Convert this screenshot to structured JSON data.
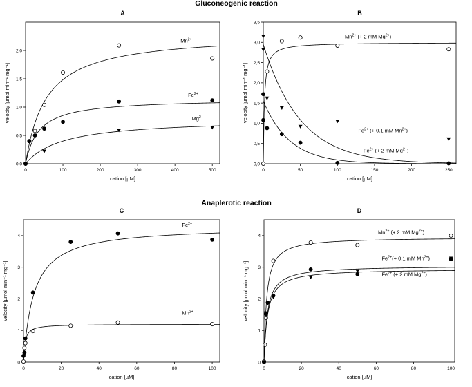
{
  "figure": {
    "section_top": "Gluconeogenic reaction",
    "section_bottom": "Anaplerotic reaction"
  },
  "chart_data": [
    {
      "type": "scatter",
      "panel": "A",
      "xlabel": "cation [µM]",
      "ylabel": "velocity [µmol min⁻¹ mg⁻¹]",
      "xlim": [
        0,
        520
      ],
      "ylim": [
        0,
        2.5
      ],
      "xticks": [
        0,
        100,
        200,
        300,
        400,
        500
      ],
      "yticks": [
        0,
        0.5,
        1.0,
        1.5,
        2.0
      ],
      "ytick_labels": [
        "0,0",
        "0,5",
        "1,0",
        "1,5",
        "2,0"
      ],
      "series": [
        {
          "name": "Mn2+",
          "label": "Mn",
          "sup": "2+",
          "marker": "circle-open",
          "x": [
            0,
            10,
            25,
            50,
            100,
            250,
            500
          ],
          "y": [
            0.0,
            0.4,
            0.58,
            1.04,
            1.61,
            2.09,
            1.86
          ],
          "fit": {
            "model": "mm",
            "vmax": 2.3,
            "k": 55,
            "y0": 0
          }
        },
        {
          "name": "Fe2+",
          "label": "Fe",
          "sup": "2+",
          "marker": "circle-filled",
          "x": [
            0,
            10,
            25,
            50,
            100,
            250,
            500
          ],
          "y": [
            0.0,
            0.4,
            0.5,
            0.62,
            0.74,
            1.1,
            1.12
          ],
          "fit": {
            "model": "mm",
            "vmax": 1.15,
            "k": 35,
            "y0": 0
          }
        },
        {
          "name": "Mg2+",
          "label": "Mg",
          "sup": "2+",
          "marker": "triangle-down",
          "x": [
            0,
            50,
            250,
            500
          ],
          "y": [
            0.0,
            0.22,
            0.59,
            0.64
          ],
          "fit": {
            "model": "mm",
            "vmax": 0.8,
            "k": 100,
            "y0": 0
          }
        }
      ],
      "labels": [
        {
          "series": 0,
          "x": 415,
          "y": 2.14
        },
        {
          "series": 1,
          "x": 435,
          "y": 1.18
        },
        {
          "series": 2,
          "x": 445,
          "y": 0.77
        }
      ]
    },
    {
      "type": "scatter",
      "panel": "B",
      "xlabel": "cation [µM]",
      "ylabel": "velocity [µmol min⁻¹ mg⁻¹]",
      "xlim": [
        0,
        260
      ],
      "ylim": [
        0,
        3.5
      ],
      "xticks": [
        0,
        50,
        100,
        150,
        200,
        250
      ],
      "yticks": [
        0,
        0.5,
        1.0,
        1.5,
        2.0,
        2.5,
        3.0,
        3.5
      ],
      "ytick_labels": [
        "0,0",
        "0,5",
        "1,0",
        "1,5",
        "2,0",
        "2,5",
        "3,0",
        "3,5"
      ],
      "series": [
        {
          "name": "Mn2+ (+ 2 mM Mg2+)",
          "label": "Mn",
          "sup": "2+",
          "suffix": " (+ 2 mM Mg",
          "suffix_sup": "2+",
          "tail": ")",
          "marker": "circle-open",
          "x": [
            0,
            5,
            25,
            50,
            100,
            250
          ],
          "y": [
            0.0,
            2.28,
            3.03,
            3.12,
            2.92,
            2.83
          ],
          "fit": {
            "model": "mm",
            "vmax": 3.0,
            "k": 1.5,
            "y0": 0
          }
        },
        {
          "name": "Fe2+ (+ 0.1 mM Mn2+)",
          "label": "Fe",
          "sup": "2+",
          "suffix": " (+ 0.1 mM Mn",
          "suffix_sup": "2+",
          "tail": ")",
          "marker": "triangle-down",
          "x": [
            0,
            0,
            5,
            25,
            50,
            100,
            250
          ],
          "y": [
            3.15,
            2.82,
            1.62,
            1.38,
            0.92,
            1.05,
            0.61
          ],
          "fit": {
            "model": "exp",
            "a": 2.95,
            "k": 0.02,
            "y0": 0
          }
        },
        {
          "name": "Fe2+ (+ 2 mM Mg2+)",
          "label": "Fe",
          "sup": "2+",
          "suffix": " (+ 2 mM Mg",
          "suffix_sup": "2+",
          "tail": ")",
          "marker": "circle-filled",
          "x": [
            0,
            0,
            5,
            25,
            50,
            100,
            250
          ],
          "y": [
            1.72,
            1.08,
            0.88,
            0.73,
            0.52,
            0.02,
            0.01
          ],
          "fit": {
            "model": "exp",
            "a": 1.55,
            "k": 0.028,
            "y0": 0
          }
        }
      ],
      "labels": [
        {
          "series": 0,
          "x": 110,
          "y": 3.1
        },
        {
          "series": 1,
          "x": 128,
          "y": 0.78
        },
        {
          "series": 2,
          "x": 135,
          "y": 0.28
        }
      ]
    },
    {
      "type": "scatter",
      "panel": "C",
      "xlabel": "cation [µM]",
      "ylabel": "velocity [µmol min⁻¹ mg⁻¹]",
      "xlim": [
        0,
        104
      ],
      "ylim": [
        0,
        4.5
      ],
      "xticks": [
        0,
        20,
        40,
        60,
        80,
        100
      ],
      "yticks": [
        0,
        1,
        2,
        3,
        4
      ],
      "ytick_labels": [
        "0",
        "1",
        "2",
        "3",
        "4"
      ],
      "series": [
        {
          "name": "Fe2+",
          "label": "Fe",
          "sup": "2+",
          "marker": "circle-filled",
          "x": [
            0,
            0.5,
            1,
            5,
            25,
            50,
            100
          ],
          "y": [
            0.2,
            0.3,
            0.75,
            2.2,
            3.8,
            4.07,
            3.87
          ],
          "fit": {
            "model": "mm",
            "vmax": 4.3,
            "k": 5.5,
            "y0": 0
          }
        },
        {
          "name": "Mn2+",
          "label": "Mn",
          "sup": "2+",
          "marker": "circle-open",
          "x": [
            0,
            0.5,
            1,
            5,
            25,
            50,
            100
          ],
          "y": [
            0.02,
            0.45,
            0.6,
            0.98,
            1.15,
            1.25,
            1.2
          ],
          "fit": {
            "model": "mm",
            "vmax": 1.2,
            "k": 0.8,
            "y0": 0
          }
        }
      ],
      "labels": [
        {
          "series": 0,
          "x": 84,
          "y": 4.28
        },
        {
          "series": 1,
          "x": 84,
          "y": 1.5
        }
      ]
    },
    {
      "type": "scatter",
      "panel": "D",
      "xlabel": "cation [µM]",
      "ylabel": "velocity [µmol min⁻¹ mg⁻¹]",
      "xlim": [
        0,
        102
      ],
      "ylim": [
        0,
        4.5
      ],
      "xticks": [
        0,
        20,
        40,
        60,
        80,
        100
      ],
      "yticks": [
        0,
        1,
        2,
        3,
        4
      ],
      "ytick_labels": [
        "0",
        "1",
        "2",
        "3",
        "4"
      ],
      "series": [
        {
          "name": "Mn2+ (+ 2 mM Mg2+)",
          "label": "Mn",
          "sup": "2+",
          "suffix": " (+ 2 mM Mg",
          "suffix_sup": "2+",
          "tail": ")",
          "marker": "circle-open",
          "x": [
            0,
            0.5,
            1,
            5,
            25,
            50,
            100
          ],
          "y": [
            0.02,
            0.55,
            1.4,
            3.2,
            3.78,
            3.7,
            4.0
          ],
          "fit": {
            "model": "mm",
            "vmax": 3.95,
            "k": 1.4,
            "y0": 0
          }
        },
        {
          "name": "Fe2+ (+ 0.1 mM Mn2+)",
          "label": "Fe",
          "sup": "2+",
          "suffix": "(+ 0.1 mM Mn",
          "suffix_sup": "2+",
          "tail": ")",
          "marker": "circle-filled",
          "x": [
            0,
            1,
            2,
            5,
            25,
            50,
            100
          ],
          "y": [
            0.0,
            1.52,
            1.88,
            2.1,
            2.93,
            2.78,
            3.25
          ],
          "fit": {
            "model": "mm",
            "vmax": 3.05,
            "k": 1.8,
            "y0": 0
          }
        },
        {
          "name": "Fe2+ (+ 2 mM Mg2+)",
          "label": "Fe",
          "sup": "2+",
          "suffix": " (+ 2 mM Mg",
          "suffix_sup": "2+",
          "tail": ")",
          "marker": "triangle-down",
          "x": [
            0,
            1,
            2,
            5,
            25,
            50,
            100
          ],
          "y": [
            0.0,
            1.55,
            1.85,
            2.05,
            2.68,
            2.88,
            3.28
          ],
          "fit": {
            "model": "mm",
            "vmax": 2.95,
            "k": 1.9,
            "y0": 0
          }
        }
      ],
      "labels": [
        {
          "series": 0,
          "x": 61,
          "y": 4.05
        },
        {
          "series": 1,
          "x": 63,
          "y": 3.22
        },
        {
          "series": 2,
          "x": 63,
          "y": 2.72
        }
      ]
    }
  ]
}
